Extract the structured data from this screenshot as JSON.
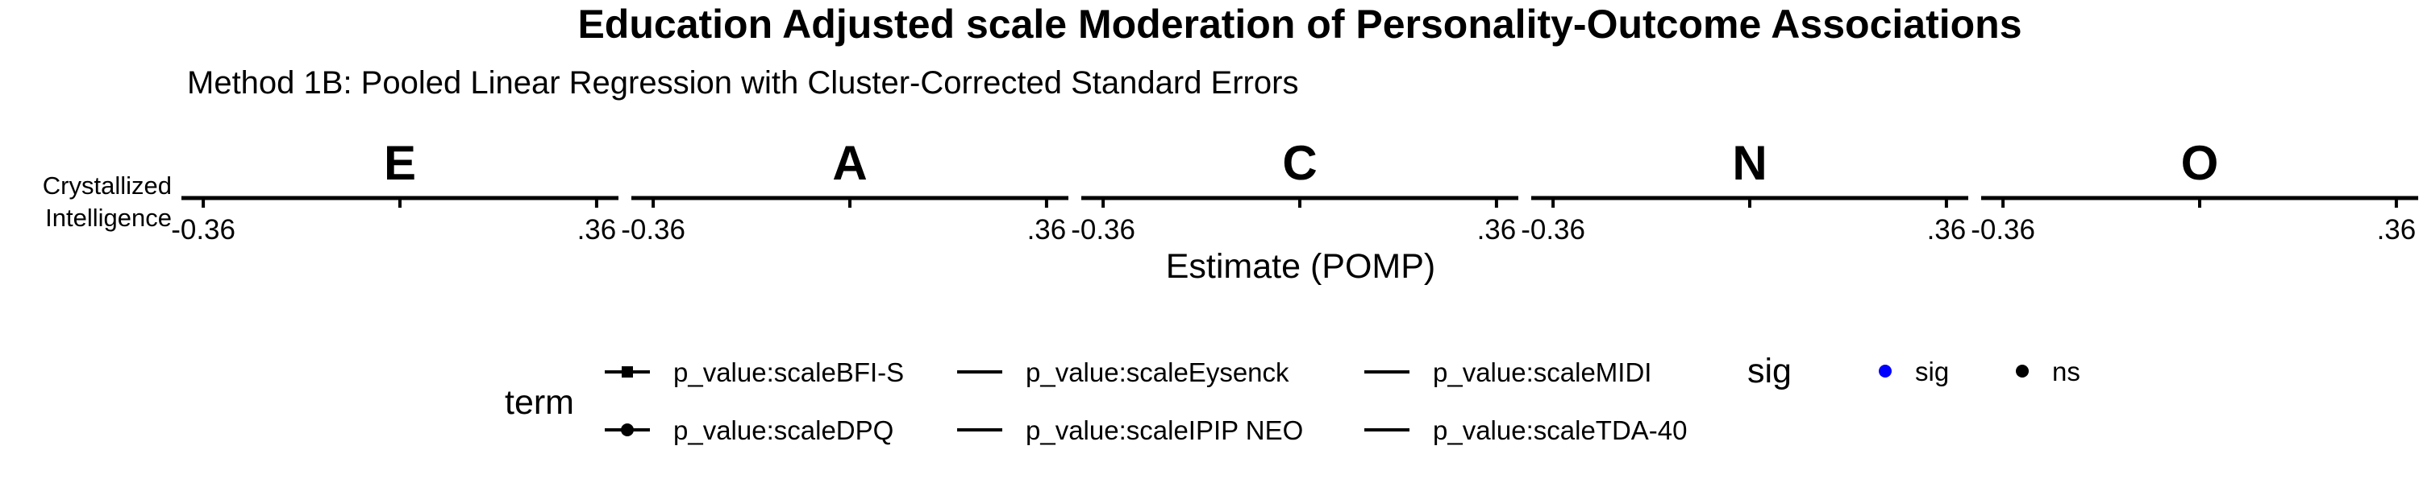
{
  "title": "Education Adjusted scale Moderation of Personality-Outcome Associations",
  "subtitle": "Method 1B: Pooled Linear Regression with Cluster-Corrected Standard Errors",
  "chart_data": {
    "type": "line",
    "facets": [
      "E",
      "A",
      "C",
      "N",
      "O"
    ],
    "y_categories": [
      "Crystallized\nIntelligence"
    ],
    "xlabel": "Estimate (POMP)",
    "ylabel": "",
    "x_ticks": [
      {
        "value": -0.36,
        "label": "-0.36"
      },
      {
        "value": 0,
        "label": ""
      },
      {
        "value": 0.36,
        "label": ".36"
      }
    ],
    "xlim": [
      -0.4,
      0.4
    ],
    "series": [],
    "legend": {
      "placement": "bottom",
      "term": {
        "title": "term",
        "entries": [
          {
            "label": "p_value:scaleBFI-S",
            "marker": "square"
          },
          {
            "label": "p_value:scaleDPQ",
            "marker": "circle"
          },
          {
            "label": "p_value:scaleEysenck",
            "marker": "none"
          },
          {
            "label": "p_value:scaleIPIP NEO",
            "marker": "none"
          },
          {
            "label": "p_value:scaleMIDI",
            "marker": "none"
          },
          {
            "label": "p_value:scaleTDA-40",
            "marker": "none"
          }
        ]
      },
      "sig": {
        "title": "sig",
        "entries": [
          {
            "label": "sig",
            "color": "#0000ff"
          },
          {
            "label": "ns",
            "color": "#000000"
          }
        ]
      }
    },
    "grid": false
  }
}
